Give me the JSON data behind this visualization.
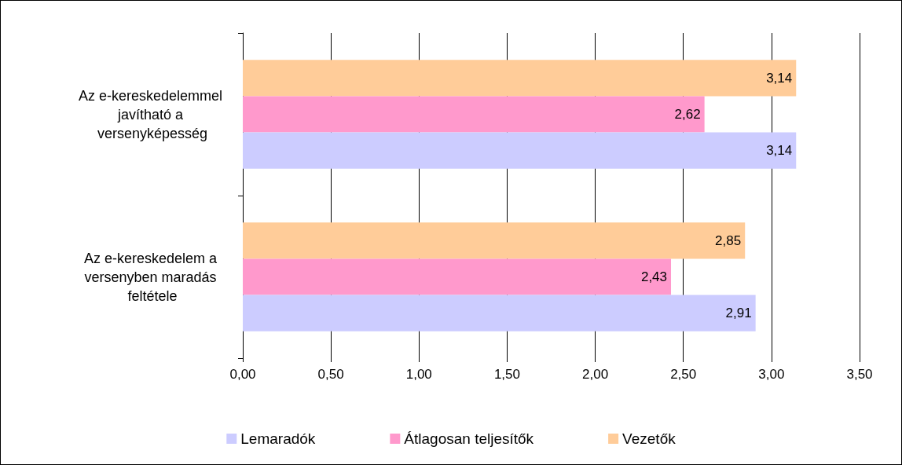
{
  "chart_data": {
    "type": "bar",
    "orientation": "horizontal",
    "categories": [
      "Az e-kereskedelemmel javítható a versenyképesség",
      "Az e-kereskedelem a versenyben maradás feltétele"
    ],
    "series": [
      {
        "name": "Lemaradók",
        "color": "#ccccff",
        "values": [
          3.14,
          2.91
        ],
        "value_labels": [
          "3,14",
          "2,91"
        ]
      },
      {
        "name": "Átlagosan teljesítők",
        "color": "#ff99cc",
        "values": [
          2.62,
          2.43
        ],
        "value_labels": [
          "2,62",
          "2,43"
        ]
      },
      {
        "name": "Vezetők",
        "color": "#ffcc99",
        "values": [
          3.14,
          2.85
        ],
        "value_labels": [
          "3,14",
          "2,85"
        ]
      }
    ],
    "xlim": [
      0,
      3.5
    ],
    "xticks": [
      {
        "value": 0,
        "label": "0,00"
      },
      {
        "value": 0.5,
        "label": "0,50"
      },
      {
        "value": 1,
        "label": "1,00"
      },
      {
        "value": 1.5,
        "label": "1,50"
      },
      {
        "value": 2,
        "label": "2,00"
      },
      {
        "value": 2.5,
        "label": "2,50"
      },
      {
        "value": 3,
        "label": "3,00"
      },
      {
        "value": 3.5,
        "label": "3,50"
      }
    ],
    "grid": "x",
    "legend": "bottom"
  }
}
